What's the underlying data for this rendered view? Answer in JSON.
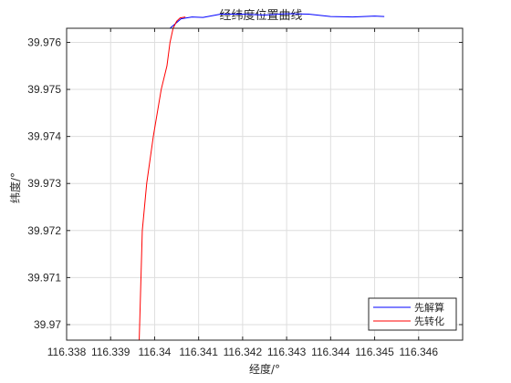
{
  "chart_data": {
    "type": "line",
    "title": "经纬度位置曲线",
    "xlabel": "经度/°",
    "ylabel": "纬度/°",
    "xlim": [
      116.338,
      116.347
    ],
    "ylim": [
      39.96967,
      39.9763
    ],
    "xticks": [
      116.338,
      116.339,
      116.34,
      116.341,
      116.342,
      116.343,
      116.344,
      116.345,
      116.346
    ],
    "xtick_labels": [
      "116.338",
      "116.339",
      "116.34",
      "116.341",
      "116.342",
      "116.343",
      "116.344",
      "116.345",
      "116.346"
    ],
    "yticks": [
      39.97,
      39.971,
      39.972,
      39.973,
      39.974,
      39.975,
      39.976
    ],
    "ytick_labels": [
      "39.97",
      "39.971",
      "39.972",
      "39.973",
      "39.974",
      "39.975",
      "39.976"
    ],
    "grid": true,
    "legend_position": "bottom-right",
    "series": [
      {
        "name": "先解算",
        "color": "#0000ff",
        "x": [
          116.34035,
          116.3406,
          116.34085,
          116.3411,
          116.3415,
          116.342,
          116.3425,
          116.343,
          116.3435,
          116.344,
          116.3445,
          116.345,
          116.34522
        ],
        "y": [
          39.9763,
          39.9765,
          39.97654,
          39.97653,
          39.9766,
          39.9766,
          39.97658,
          39.97661,
          39.9766,
          39.97655,
          39.97654,
          39.97656,
          39.97655
        ]
      },
      {
        "name": "先转化",
        "color": "#ff0000",
        "x": [
          116.33965,
          116.33972,
          116.33982,
          116.33997,
          116.34015,
          116.34028,
          116.34035,
          116.34042,
          116.3405,
          116.34058,
          116.3407
        ],
        "y": [
          39.96967,
          39.972,
          39.973,
          39.974,
          39.975,
          39.9755,
          39.976,
          39.9763,
          39.97645,
          39.97652,
          39.97654
        ]
      }
    ]
  }
}
